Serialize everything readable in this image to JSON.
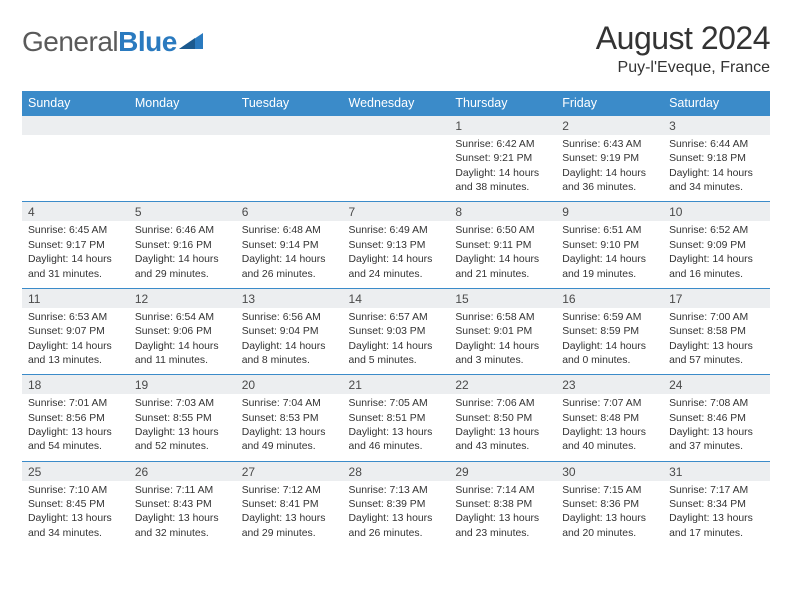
{
  "brand": {
    "part1": "General",
    "part2": "Blue"
  },
  "title": "August 2024",
  "subtitle": "Puy-l'Eveque, France",
  "colors": {
    "header_bg": "#3b8bc9",
    "header_text": "#ffffff",
    "daynum_bg": "#eceef0",
    "row_border": "#3b8bc9",
    "text": "#333333",
    "logo_gray": "#5a5a5a",
    "logo_blue": "#2a7abf",
    "page_bg": "#ffffff"
  },
  "typography": {
    "title_fontsize": 32,
    "subtitle_fontsize": 16,
    "logo_fontsize": 28,
    "dayheader_fontsize": 12.5,
    "daynum_fontsize": 12,
    "detail_fontsize": 10.4
  },
  "day_headers": [
    "Sunday",
    "Monday",
    "Tuesday",
    "Wednesday",
    "Thursday",
    "Friday",
    "Saturday"
  ],
  "weeks": [
    [
      null,
      null,
      null,
      null,
      {
        "n": "1",
        "sunrise": "6:42 AM",
        "sunset": "9:21 PM",
        "dh": "14",
        "dm": "38"
      },
      {
        "n": "2",
        "sunrise": "6:43 AM",
        "sunset": "9:19 PM",
        "dh": "14",
        "dm": "36"
      },
      {
        "n": "3",
        "sunrise": "6:44 AM",
        "sunset": "9:18 PM",
        "dh": "14",
        "dm": "34"
      }
    ],
    [
      {
        "n": "4",
        "sunrise": "6:45 AM",
        "sunset": "9:17 PM",
        "dh": "14",
        "dm": "31"
      },
      {
        "n": "5",
        "sunrise": "6:46 AM",
        "sunset": "9:16 PM",
        "dh": "14",
        "dm": "29"
      },
      {
        "n": "6",
        "sunrise": "6:48 AM",
        "sunset": "9:14 PM",
        "dh": "14",
        "dm": "26"
      },
      {
        "n": "7",
        "sunrise": "6:49 AM",
        "sunset": "9:13 PM",
        "dh": "14",
        "dm": "24"
      },
      {
        "n": "8",
        "sunrise": "6:50 AM",
        "sunset": "9:11 PM",
        "dh": "14",
        "dm": "21"
      },
      {
        "n": "9",
        "sunrise": "6:51 AM",
        "sunset": "9:10 PM",
        "dh": "14",
        "dm": "19"
      },
      {
        "n": "10",
        "sunrise": "6:52 AM",
        "sunset": "9:09 PM",
        "dh": "14",
        "dm": "16"
      }
    ],
    [
      {
        "n": "11",
        "sunrise": "6:53 AM",
        "sunset": "9:07 PM",
        "dh": "14",
        "dm": "13"
      },
      {
        "n": "12",
        "sunrise": "6:54 AM",
        "sunset": "9:06 PM",
        "dh": "14",
        "dm": "11"
      },
      {
        "n": "13",
        "sunrise": "6:56 AM",
        "sunset": "9:04 PM",
        "dh": "14",
        "dm": "8"
      },
      {
        "n": "14",
        "sunrise": "6:57 AM",
        "sunset": "9:03 PM",
        "dh": "14",
        "dm": "5"
      },
      {
        "n": "15",
        "sunrise": "6:58 AM",
        "sunset": "9:01 PM",
        "dh": "14",
        "dm": "3"
      },
      {
        "n": "16",
        "sunrise": "6:59 AM",
        "sunset": "8:59 PM",
        "dh": "14",
        "dm": "0"
      },
      {
        "n": "17",
        "sunrise": "7:00 AM",
        "sunset": "8:58 PM",
        "dh": "13",
        "dm": "57"
      }
    ],
    [
      {
        "n": "18",
        "sunrise": "7:01 AM",
        "sunset": "8:56 PM",
        "dh": "13",
        "dm": "54"
      },
      {
        "n": "19",
        "sunrise": "7:03 AM",
        "sunset": "8:55 PM",
        "dh": "13",
        "dm": "52"
      },
      {
        "n": "20",
        "sunrise": "7:04 AM",
        "sunset": "8:53 PM",
        "dh": "13",
        "dm": "49"
      },
      {
        "n": "21",
        "sunrise": "7:05 AM",
        "sunset": "8:51 PM",
        "dh": "13",
        "dm": "46"
      },
      {
        "n": "22",
        "sunrise": "7:06 AM",
        "sunset": "8:50 PM",
        "dh": "13",
        "dm": "43"
      },
      {
        "n": "23",
        "sunrise": "7:07 AM",
        "sunset": "8:48 PM",
        "dh": "13",
        "dm": "40"
      },
      {
        "n": "24",
        "sunrise": "7:08 AM",
        "sunset": "8:46 PM",
        "dh": "13",
        "dm": "37"
      }
    ],
    [
      {
        "n": "25",
        "sunrise": "7:10 AM",
        "sunset": "8:45 PM",
        "dh": "13",
        "dm": "34"
      },
      {
        "n": "26",
        "sunrise": "7:11 AM",
        "sunset": "8:43 PM",
        "dh": "13",
        "dm": "32"
      },
      {
        "n": "27",
        "sunrise": "7:12 AM",
        "sunset": "8:41 PM",
        "dh": "13",
        "dm": "29"
      },
      {
        "n": "28",
        "sunrise": "7:13 AM",
        "sunset": "8:39 PM",
        "dh": "13",
        "dm": "26"
      },
      {
        "n": "29",
        "sunrise": "7:14 AM",
        "sunset": "8:38 PM",
        "dh": "13",
        "dm": "23"
      },
      {
        "n": "30",
        "sunrise": "7:15 AM",
        "sunset": "8:36 PM",
        "dh": "13",
        "dm": "20"
      },
      {
        "n": "31",
        "sunrise": "7:17 AM",
        "sunset": "8:34 PM",
        "dh": "13",
        "dm": "17"
      }
    ]
  ],
  "labels": {
    "sunrise": "Sunrise: ",
    "sunset": "Sunset: ",
    "daylight_pre": "Daylight: ",
    "hours": " hours",
    "and": "and ",
    "minutes": " minutes."
  }
}
